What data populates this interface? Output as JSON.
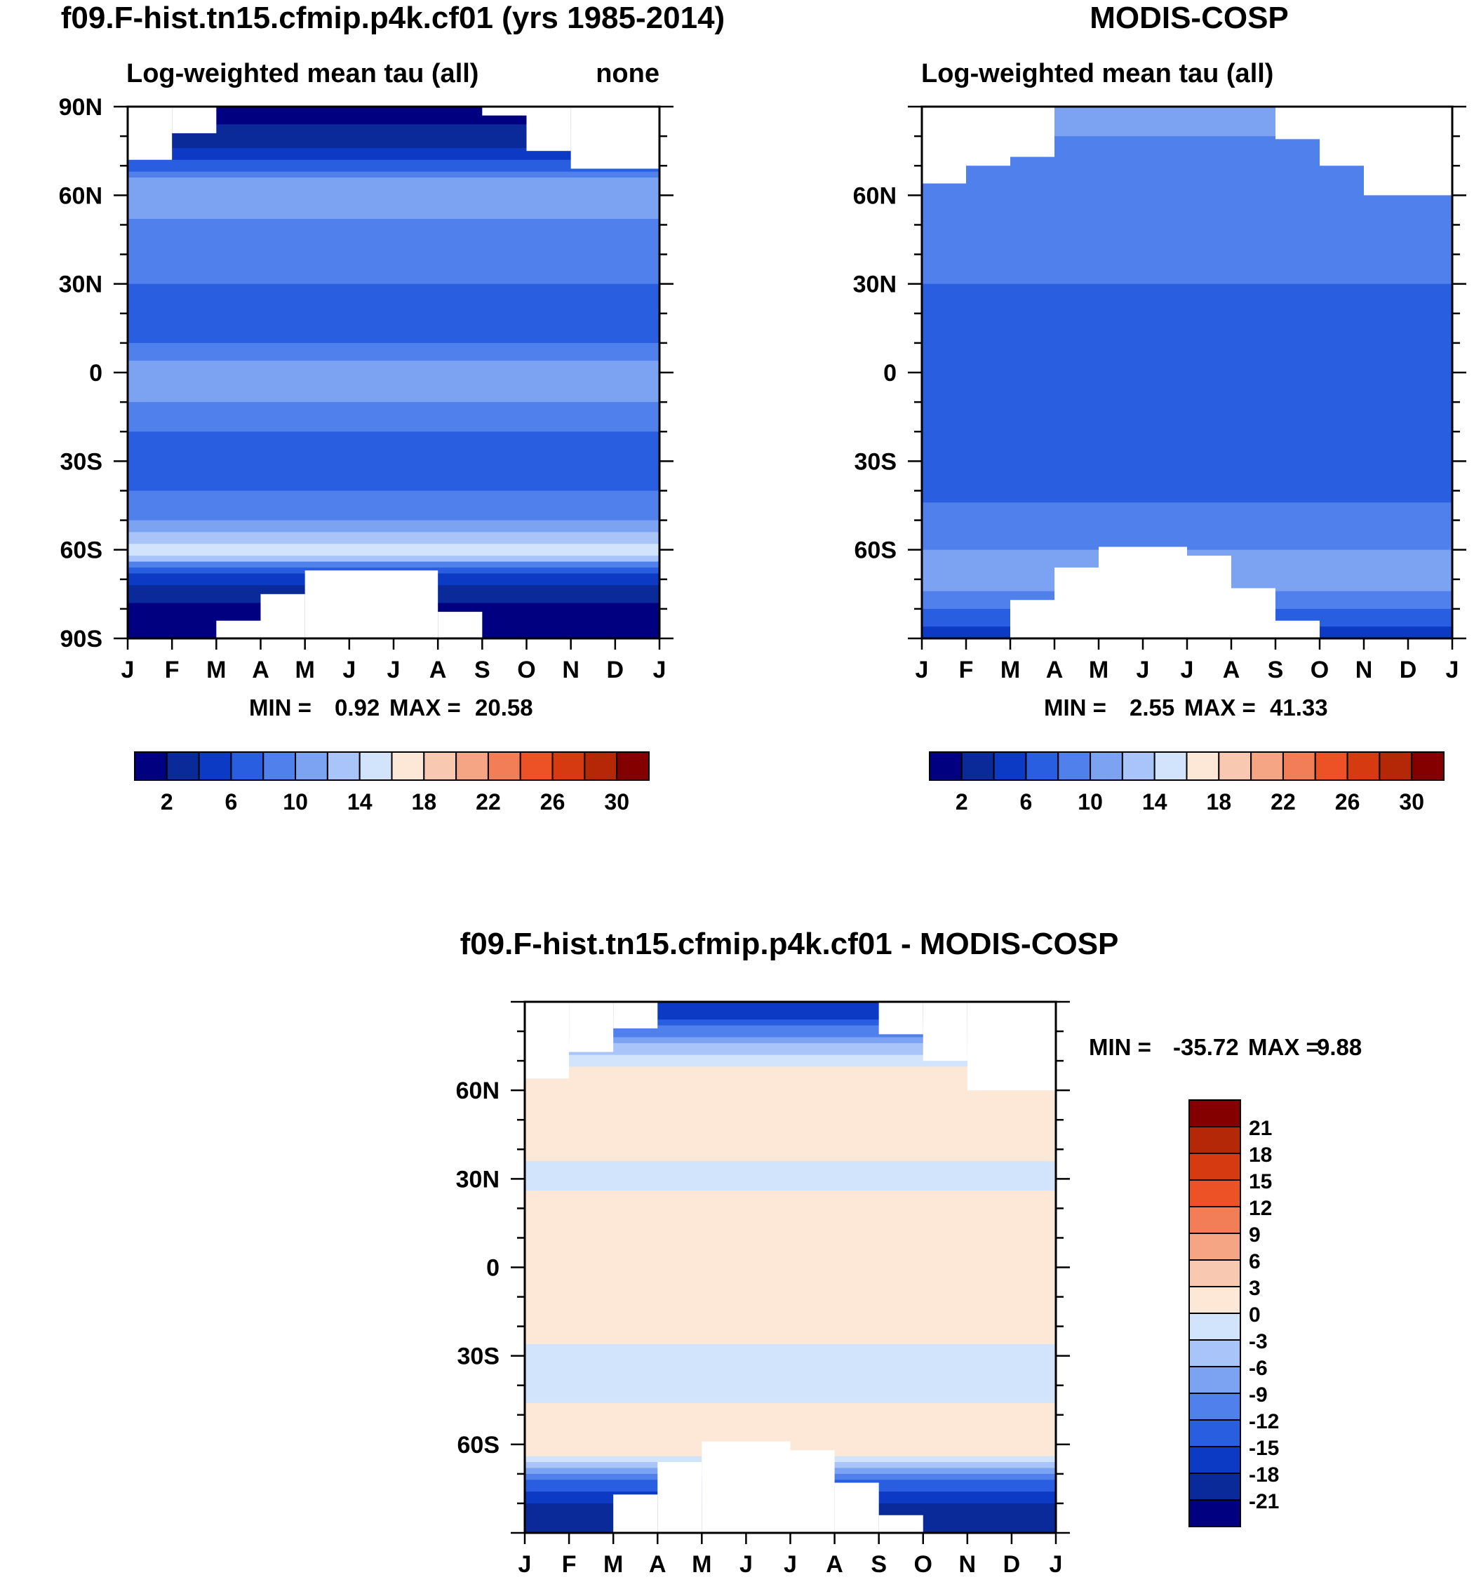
{
  "figure": {
    "title_left": "f09.F-hist.tn15.cfmip.p4k.cf01 (yrs 1985-2014)",
    "title_right": "MODIS-COSP",
    "title_bottom": "f09.F-hist.tn15.cfmip.p4k.cf01 - MODIS-COSP"
  },
  "colors": {
    "abs_levels": [
      "#000080",
      "#0a2a9a",
      "#0c3ac4",
      "#2a5ee0",
      "#5080ec",
      "#7ca2f2",
      "#a8c4f8",
      "#d2e4fc",
      "#fde8d8",
      "#f9c8b0",
      "#f5a484",
      "#f27e58",
      "#ec5226",
      "#d63a10",
      "#b42808",
      "#840000"
    ],
    "diff_levels": [
      "#000080",
      "#0a2a9a",
      "#0c3ac4",
      "#2a5ee0",
      "#5080ec",
      "#7ca2f2",
      "#a8c4f8",
      "#d2e4fc",
      "#fde8d8",
      "#f9c8b0",
      "#f5a484",
      "#f27e58",
      "#ec5226",
      "#d63a10",
      "#b42808",
      "#840000"
    ]
  },
  "chart_data": [
    {
      "type": "heatmap",
      "title": "f09.F-hist.tn15.cfmip.p4k.cf01 (yrs 1985-2014)",
      "subtitle_left": "Log-weighted mean tau (all)",
      "subtitle_right": "none",
      "x_ticks": [
        "J",
        "F",
        "M",
        "A",
        "M",
        "J",
        "J",
        "A",
        "S",
        "O",
        "N",
        "D",
        "J"
      ],
      "y_ticks": [
        "90N",
        "60N",
        "30N",
        "0",
        "30S",
        "60S",
        "90S"
      ],
      "y_range": [
        -90,
        90
      ],
      "min_label": "MIN =",
      "min_value": "0.92",
      "max_label": "MAX =",
      "max_value": "20.58",
      "colorbar_ticks": [
        "2",
        "6",
        "10",
        "14",
        "18",
        "22",
        "26",
        "30"
      ],
      "lat_profile": [
        [
          90,
          1
        ],
        [
          84,
          2
        ],
        [
          76,
          4
        ],
        [
          70,
          7
        ],
        [
          64,
          12
        ],
        [
          56,
          11
        ],
        [
          48,
          9
        ],
        [
          40,
          8
        ],
        [
          30,
          8
        ],
        [
          20,
          7
        ],
        [
          10,
          8
        ],
        [
          0,
          11
        ],
        [
          -10,
          10
        ],
        [
          -20,
          8
        ],
        [
          -30,
          7
        ],
        [
          -40,
          8
        ],
        [
          -48,
          9
        ],
        [
          -54,
          12
        ],
        [
          -60,
          15
        ],
        [
          -64,
          11
        ],
        [
          -68,
          6
        ],
        [
          -74,
          3
        ],
        [
          -80,
          1
        ],
        [
          -90,
          1
        ]
      ]
    },
    {
      "type": "heatmap",
      "title": "MODIS-COSP",
      "subtitle_left": "Log-weighted mean tau (all)",
      "x_ticks": [
        "J",
        "F",
        "M",
        "A",
        "M",
        "J",
        "J",
        "A",
        "S",
        "O",
        "N",
        "D",
        "J"
      ],
      "y_ticks": [
        "60N",
        "30N",
        "0",
        "30S",
        "60S"
      ],
      "y_range": [
        -90,
        90
      ],
      "min_label": "MIN =",
      "min_value": "2.55",
      "max_label": "MAX =",
      "max_value": "41.33",
      "colorbar_ticks": [
        "2",
        "6",
        "10",
        "14",
        "18",
        "22",
        "26",
        "30"
      ],
      "lat_profile": [
        [
          90,
          11
        ],
        [
          80,
          10
        ],
        [
          70,
          9
        ],
        [
          60,
          9
        ],
        [
          50,
          10
        ],
        [
          40,
          9
        ],
        [
          30,
          8
        ],
        [
          20,
          6
        ],
        [
          10,
          6
        ],
        [
          0,
          6
        ],
        [
          -10,
          6
        ],
        [
          -20,
          6
        ],
        [
          -30,
          6
        ],
        [
          -40,
          7
        ],
        [
          -50,
          9
        ],
        [
          -60,
          10
        ],
        [
          -70,
          11
        ],
        [
          -80,
          8
        ],
        [
          -90,
          5
        ]
      ]
    },
    {
      "type": "heatmap",
      "title": "f09.F-hist.tn15.cfmip.p4k.cf01 - MODIS-COSP",
      "x_ticks": [
        "J",
        "F",
        "M",
        "A",
        "M",
        "J",
        "J",
        "A",
        "S",
        "O",
        "N",
        "D",
        "J"
      ],
      "y_ticks": [
        "60N",
        "30N",
        "0",
        "30S",
        "60S"
      ],
      "y_range": [
        -90,
        90
      ],
      "min_label": "MIN =",
      "min_value": "-35.72",
      "max_label": "MAX =",
      "max_value": "9.88",
      "colorbar_ticks": [
        "21",
        "18",
        "15",
        "12",
        "9",
        "6",
        "3",
        "0",
        "-3",
        "-6",
        "-9",
        "-12",
        "-15",
        "-18",
        "-21"
      ],
      "lat_profile": [
        [
          90,
          -18
        ],
        [
          84,
          -15
        ],
        [
          78,
          -9
        ],
        [
          72,
          -3
        ],
        [
          66,
          1
        ],
        [
          58,
          3
        ],
        [
          50,
          2
        ],
        [
          40,
          1
        ],
        [
          32,
          -1
        ],
        [
          20,
          1
        ],
        [
          10,
          2
        ],
        [
          0,
          3
        ],
        [
          -10,
          2
        ],
        [
          -20,
          1
        ],
        [
          -30,
          -1
        ],
        [
          -40,
          -2
        ],
        [
          -50,
          1
        ],
        [
          -58,
          3
        ],
        [
          -62,
          2
        ],
        [
          -66,
          -4
        ],
        [
          -70,
          -10
        ],
        [
          -76,
          -15
        ],
        [
          -82,
          -19
        ],
        [
          -90,
          -21
        ]
      ]
    }
  ]
}
